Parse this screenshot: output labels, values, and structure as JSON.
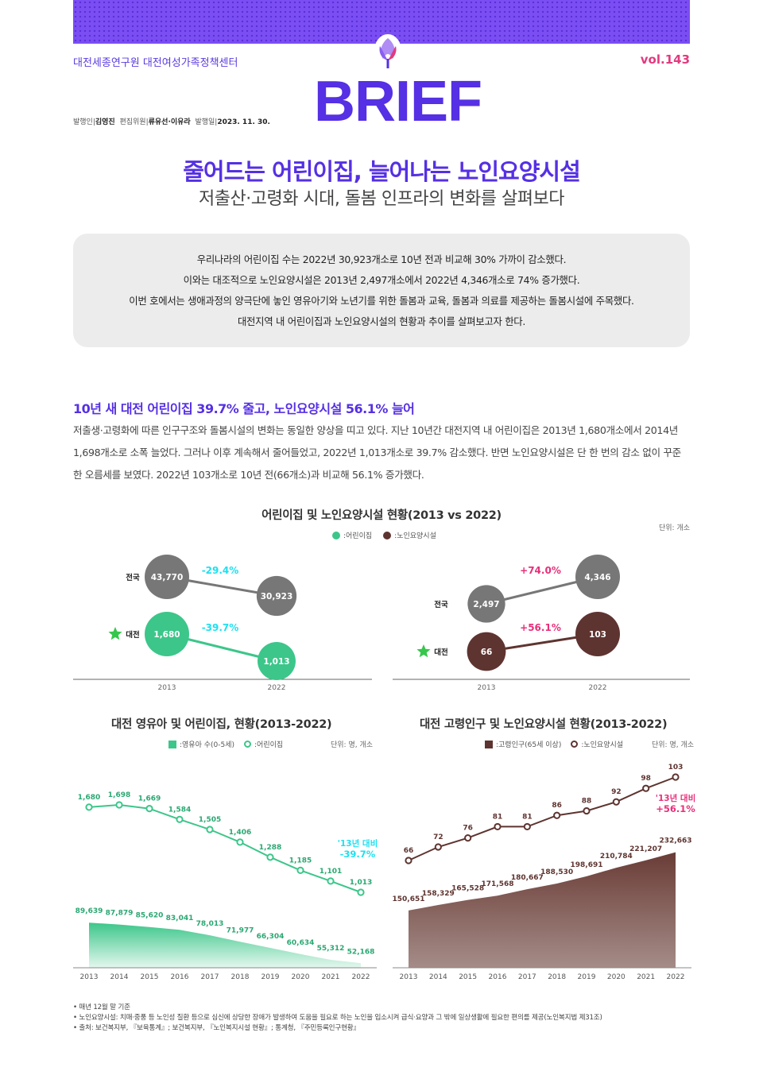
{
  "header": {
    "org": "대전세종연구원 대전여성가족정책센터",
    "vol": "vol.143",
    "logo": "BRIEF",
    "publisher_label": "발행인|",
    "publisher": "김영진",
    "editor_label": "편집위원|",
    "editors": "류유선·이유라",
    "date_label": "발행일|",
    "date": "2023. 11. 30."
  },
  "title": {
    "main": "줄어드는 어린이집, 늘어나는 노인요양시설",
    "sub": "저출산·고령화 시대, 돌봄 인프라의 변화를 살펴보다"
  },
  "summary": [
    "우리나라의 어린이집 수는 2022년 30,923개소로 10년 전과 비교해 30% 가까이 감소했다.",
    "이와는 대조적으로 노인요양시설은 2013년 2,497개소에서 2022년 4,346개소로 74% 증가했다.",
    "이번 호에서는 생애과정의 양극단에 놓인 영유아기와 노년기를 위한 돌봄과 교육, 돌봄과 의료를 제공하는 돌봄시설에 주목했다.",
    "대전지역 내 어린이집과 노인요양시설의 현황과 추이를 살펴보고자 한다."
  ],
  "section": {
    "title": "10년 새 대전 어린이집 39.7% 줄고, 노인요양시설 56.1% 늘어",
    "body": "저출생·고령화에 따른 인구구조와 돌봄시설의 변화는 동일한 양상을 띠고 있다. 지난 10년간 대전지역 내 어린이집은 2013년 1,680개소에서 2014년 1,698개소로 소폭 늘었다. 그러나 이후 계속해서 줄어들었고, 2022년 1,013개소로 39.7% 감소했다. 반면 노인요양시설은 단 한 번의 감소 없이 꾸준한 오름세를 보였다. 2022년 103개소로 10년 전(66개소)과 비교해 56.1% 증가했다."
  },
  "colors": {
    "purple": "#5530e4",
    "green": "#3cc68a",
    "gray": "#777777",
    "brown": "#5e3430",
    "cyan": "#1ee0f0",
    "pink": "#e8307a"
  },
  "chart_data": [
    {
      "type": "dumbbell",
      "title": "어린이집 및 노인요양시설 현황(2013 vs 2022)",
      "unit": "단위: 개소",
      "legend": [
        ":어린이집",
        ":노인요양시설"
      ],
      "x_labels": [
        "2013",
        "2022"
      ],
      "panels": [
        {
          "facility": "어린이집",
          "rows": [
            {
              "region": "전국",
              "v2013": 43770,
              "v2022": 30923,
              "label2013": "43,770",
              "label2022": "30,923",
              "change": "-29.4%"
            },
            {
              "region": "대전",
              "v2013": 1680,
              "v2022": 1013,
              "label2013": "1,680",
              "label2022": "1,013",
              "change": "-39.7%"
            }
          ]
        },
        {
          "facility": "노인요양시설",
          "rows": [
            {
              "region": "전국",
              "v2013": 2497,
              "v2022": 4346,
              "label2013": "2,497",
              "label2022": "4,346",
              "change": "+74.0%"
            },
            {
              "region": "대전",
              "v2013": 66,
              "v2022": 103,
              "label2013": "66",
              "label2022": "103",
              "change": "+56.1%"
            }
          ]
        }
      ]
    },
    {
      "type": "line+area",
      "title": "대전 영유아 및 어린이집, 현황(2013-2022)",
      "unit": "단위: 명, 개소",
      "legend": [
        ":영유아 수(0-5세)",
        ":어린이집"
      ],
      "x": [
        "2013",
        "2014",
        "2015",
        "2016",
        "2017",
        "2018",
        "2019",
        "2020",
        "2021",
        "2022"
      ],
      "series": [
        {
          "name": "영유아 수(0-5세)",
          "kind": "area",
          "values": [
            89639,
            87879,
            85620,
            83041,
            78013,
            71977,
            66304,
            60634,
            55312,
            52168
          ],
          "labels": [
            "89,639",
            "87,879",
            "85,620",
            "83,041",
            "78,013",
            "71,977",
            "66,304",
            "60,634",
            "55,312",
            "52,168"
          ]
        },
        {
          "name": "어린이집",
          "kind": "line",
          "values": [
            1680,
            1698,
            1669,
            1584,
            1505,
            1406,
            1288,
            1185,
            1101,
            1013
          ],
          "labels": [
            "1,680",
            "1,698",
            "1,669",
            "1,584",
            "1,505",
            "1,406",
            "1,288",
            "1,185",
            "1,101",
            "1,013"
          ]
        }
      ],
      "annotation": [
        "'13년 대비",
        "-39.7%"
      ]
    },
    {
      "type": "line+area",
      "title": "대전 고령인구 및 노인요양시설 현황(2013-2022)",
      "unit": "단위: 명, 개소",
      "legend": [
        ":고령인구(65세 이상)",
        ":노인요양시설"
      ],
      "x": [
        "2013",
        "2014",
        "2015",
        "2016",
        "2017",
        "2018",
        "2019",
        "2020",
        "2021",
        "2022"
      ],
      "series": [
        {
          "name": "고령인구(65세 이상)",
          "kind": "area",
          "values": [
            150651,
            158329,
            165528,
            171568,
            180667,
            188530,
            198691,
            210784,
            221207,
            232663
          ],
          "labels": [
            "150,651",
            "158,329",
            "165,528",
            "171,568",
            "180,667",
            "188,530",
            "198,691",
            "210,784",
            "221,207",
            "232,663"
          ]
        },
        {
          "name": "노인요양시설",
          "kind": "line",
          "values": [
            66,
            72,
            76,
            81,
            81,
            86,
            88,
            92,
            98,
            103
          ],
          "labels": [
            "66",
            "72",
            "76",
            "81",
            "81",
            "86",
            "88",
            "92",
            "98",
            "103"
          ]
        }
      ],
      "annotation": [
        "'13년 대비",
        "+56.1%"
      ]
    }
  ],
  "notes": [
    "• 매년 12월 말 기준",
    "• 노인요양시설: 치매·중풍 등 노인성 질환 등으로 심신에 상당한 장애가 발생하여 도움을 필요로 하는 노인을 입소시켜 급식·요양과 그 밖에 일상생활에 필요한 편의를 제공(노인복지법 제31조)",
    "• 출처: 보건복지부, 『보육통계』; 보건복지부, 『노인복지시설 현황』; 통계청, 『주민등록인구현황』"
  ]
}
